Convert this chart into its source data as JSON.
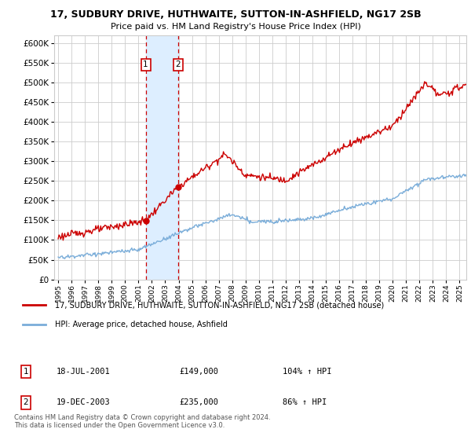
{
  "title": "17, SUDBURY DRIVE, HUTHWAITE, SUTTON-IN-ASHFIELD, NG17 2SB",
  "subtitle": "Price paid vs. HM Land Registry's House Price Index (HPI)",
  "legend_line1": "17, SUDBURY DRIVE, HUTHWAITE, SUTTON-IN-ASHFIELD, NG17 2SB (detached house)",
  "legend_line2": "HPI: Average price, detached house, Ashfield",
  "footer1": "Contains HM Land Registry data © Crown copyright and database right 2024.",
  "footer2": "This data is licensed under the Open Government Licence v3.0.",
  "sale1_date": "18-JUL-2001",
  "sale1_price": 149000,
  "sale1_label": "104% ↑ HPI",
  "sale2_date": "19-DEC-2003",
  "sale2_price": 235000,
  "sale2_label": "86% ↑ HPI",
  "ylim": [
    0,
    620000
  ],
  "yticks": [
    0,
    50000,
    100000,
    150000,
    200000,
    250000,
    300000,
    350000,
    400000,
    450000,
    500000,
    550000,
    600000
  ],
  "red_color": "#cc0000",
  "blue_color": "#7aadd9",
  "shade_color": "#ddeeff",
  "grid_color": "#cccccc",
  "marker_box_color": "#cc0000",
  "background": "#ffffff",
  "sale1_x": 2001.54,
  "sale2_x": 2003.96
}
